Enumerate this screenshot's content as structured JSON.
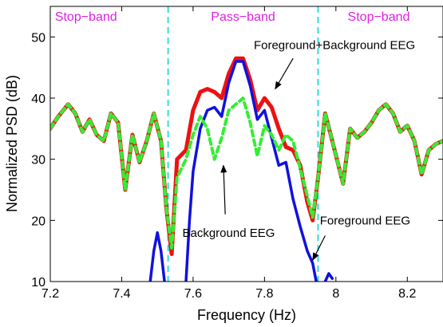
{
  "chart_data": {
    "type": "line",
    "xlabel": "Frequency (Hz)",
    "ylabel": "Normalized PSD (dB)",
    "xlim": [
      7.2,
      8.3
    ],
    "ylim": [
      10,
      55
    ],
    "x_ticks": [
      "7.2",
      "7.4",
      "7.6",
      "7.8",
      "8",
      "8.2"
    ],
    "y_ticks": [
      "10",
      "20",
      "30",
      "40",
      "50"
    ],
    "grid": false,
    "band_edges": [
      7.53,
      7.95
    ],
    "band_labels": [
      {
        "text": "Stop−band",
        "x": 7.3
      },
      {
        "text": "Pass−band",
        "x": 7.74
      },
      {
        "text": "Stop−band",
        "x": 8.12
      }
    ],
    "band_label_color": "#e020e0",
    "band_edge_color": "#33dddd",
    "series": [
      {
        "name": "Foreground+Background EEG",
        "color": "#ee1111",
        "style": "solid",
        "points": [
          [
            7.2,
            35.0
          ],
          [
            7.22,
            36.8
          ],
          [
            7.25,
            39.0
          ],
          [
            7.27,
            37.5
          ],
          [
            7.29,
            34.5
          ],
          [
            7.31,
            36.5
          ],
          [
            7.33,
            34.0
          ],
          [
            7.35,
            33.0
          ],
          [
            7.37,
            37.5
          ],
          [
            7.39,
            36.0
          ],
          [
            7.41,
            25.0
          ],
          [
            7.43,
            34.0
          ],
          [
            7.45,
            29.5
          ],
          [
            7.47,
            33.0
          ],
          [
            7.49,
            37.5
          ],
          [
            7.51,
            33.0
          ],
          [
            7.525,
            22.0
          ],
          [
            7.54,
            14.5
          ],
          [
            7.555,
            30.0
          ],
          [
            7.58,
            31.5
          ],
          [
            7.6,
            38.0
          ],
          [
            7.62,
            41.0
          ],
          [
            7.64,
            41.5
          ],
          [
            7.66,
            41.0
          ],
          [
            7.68,
            40.0
          ],
          [
            7.7,
            44.0
          ],
          [
            7.72,
            46.5
          ],
          [
            7.74,
            46.5
          ],
          [
            7.76,
            43.0
          ],
          [
            7.78,
            38.0
          ],
          [
            7.8,
            40.0
          ],
          [
            7.82,
            38.5
          ],
          [
            7.84,
            35.0
          ],
          [
            7.86,
            32.0
          ],
          [
            7.88,
            31.5
          ],
          [
            7.9,
            29.0
          ],
          [
            7.92,
            23.0
          ],
          [
            7.935,
            20.0
          ],
          [
            7.95,
            27.0
          ],
          [
            7.97,
            37.5
          ],
          [
            7.99,
            33.0
          ],
          [
            8.02,
            26.0
          ],
          [
            8.04,
            35.0
          ],
          [
            8.06,
            33.5
          ],
          [
            8.08,
            34.5
          ],
          [
            8.1,
            36.0
          ],
          [
            8.12,
            38.0
          ],
          [
            8.14,
            39.0
          ],
          [
            8.16,
            37.5
          ],
          [
            8.18,
            34.5
          ],
          [
            8.2,
            35.5
          ],
          [
            8.22,
            33.0
          ],
          [
            8.24,
            27.5
          ],
          [
            8.26,
            31.5
          ],
          [
            8.28,
            32.5
          ],
          [
            8.3,
            33.0
          ]
        ]
      },
      {
        "name": "Foreground EEG",
        "color": "#1111dd",
        "style": "solid",
        "segments": [
          [
            [
              7.48,
              10.0
            ],
            [
              7.49,
              15.0
            ],
            [
              7.5,
              18.0
            ],
            [
              7.51,
              15.0
            ],
            [
              7.52,
              10.0
            ]
          ],
          [
            [
              7.58,
              10.0
            ],
            [
              7.59,
              20.0
            ],
            [
              7.6,
              28.0
            ],
            [
              7.62,
              35.0
            ],
            [
              7.64,
              38.0
            ],
            [
              7.66,
              38.5
            ],
            [
              7.68,
              37.0
            ],
            [
              7.7,
              42.5
            ],
            [
              7.72,
              46.0
            ],
            [
              7.74,
              46.0
            ],
            [
              7.76,
              42.0
            ],
            [
              7.78,
              36.5
            ],
            [
              7.8,
              38.0
            ],
            [
              7.82,
              33.5
            ],
            [
              7.84,
              29.0
            ],
            [
              7.86,
              29.5
            ],
            [
              7.88,
              23.5
            ],
            [
              7.9,
              19.0
            ],
            [
              7.92,
              15.0
            ],
            [
              7.935,
              13.0
            ],
            [
              7.945,
              10.0
            ]
          ],
          [
            [
              7.97,
              10.0
            ],
            [
              7.98,
              11.3
            ],
            [
              7.99,
              10.5
            ]
          ]
        ]
      },
      {
        "name": "Background EEG",
        "color": "#33ee33",
        "style": "dashed",
        "points": [
          [
            7.2,
            35.0
          ],
          [
            7.22,
            36.8
          ],
          [
            7.25,
            39.0
          ],
          [
            7.27,
            37.5
          ],
          [
            7.29,
            34.5
          ],
          [
            7.31,
            36.5
          ],
          [
            7.33,
            34.0
          ],
          [
            7.35,
            33.0
          ],
          [
            7.37,
            37.5
          ],
          [
            7.39,
            36.0
          ],
          [
            7.41,
            25.0
          ],
          [
            7.43,
            34.0
          ],
          [
            7.45,
            29.5
          ],
          [
            7.47,
            33.0
          ],
          [
            7.49,
            37.5
          ],
          [
            7.51,
            33.0
          ],
          [
            7.525,
            22.0
          ],
          [
            7.54,
            15.5
          ],
          [
            7.555,
            27.0
          ],
          [
            7.58,
            30.0
          ],
          [
            7.6,
            34.0
          ],
          [
            7.62,
            37.0
          ],
          [
            7.64,
            35.0
          ],
          [
            7.66,
            30.0
          ],
          [
            7.68,
            33.5
          ],
          [
            7.7,
            38.0
          ],
          [
            7.72,
            39.0
          ],
          [
            7.74,
            40.0
          ],
          [
            7.76,
            36.0
          ],
          [
            7.78,
            30.5
          ],
          [
            7.8,
            35.5
          ],
          [
            7.82,
            34.0
          ],
          [
            7.84,
            31.5
          ],
          [
            7.86,
            34.0
          ],
          [
            7.88,
            33.0
          ],
          [
            7.9,
            28.5
          ],
          [
            7.92,
            24.0
          ],
          [
            7.935,
            20.5
          ],
          [
            7.95,
            27.0
          ],
          [
            7.97,
            37.5
          ],
          [
            7.99,
            33.0
          ],
          [
            8.02,
            26.0
          ],
          [
            8.04,
            35.0
          ],
          [
            8.06,
            33.5
          ],
          [
            8.08,
            34.5
          ],
          [
            8.1,
            36.0
          ],
          [
            8.12,
            38.0
          ],
          [
            8.14,
            39.0
          ],
          [
            8.16,
            37.5
          ],
          [
            8.18,
            34.5
          ],
          [
            8.2,
            35.5
          ],
          [
            8.22,
            33.0
          ],
          [
            8.24,
            27.5
          ],
          [
            8.26,
            31.5
          ],
          [
            8.28,
            32.5
          ],
          [
            8.3,
            33.0
          ]
        ]
      }
    ],
    "annotations": [
      {
        "text": "Foreground+Background EEG",
        "text_at": [
          7.77,
          48.0
        ],
        "anchor": "start",
        "arrow_from": [
          7.88,
          46.5
        ],
        "arrow_to": [
          7.83,
          41.5
        ]
      },
      {
        "text": "Background EEG",
        "text_at": [
          7.57,
          17.3
        ],
        "anchor": "start",
        "arrow_from": [
          7.69,
          21.0
        ],
        "arrow_to": [
          7.685,
          29.0
        ]
      },
      {
        "text": "Foreground EEG",
        "text_at": [
          7.955,
          19.3
        ],
        "anchor": "start",
        "arrow_from": [
          7.97,
          17.5
        ],
        "arrow_to": [
          7.935,
          13.5
        ]
      }
    ]
  }
}
